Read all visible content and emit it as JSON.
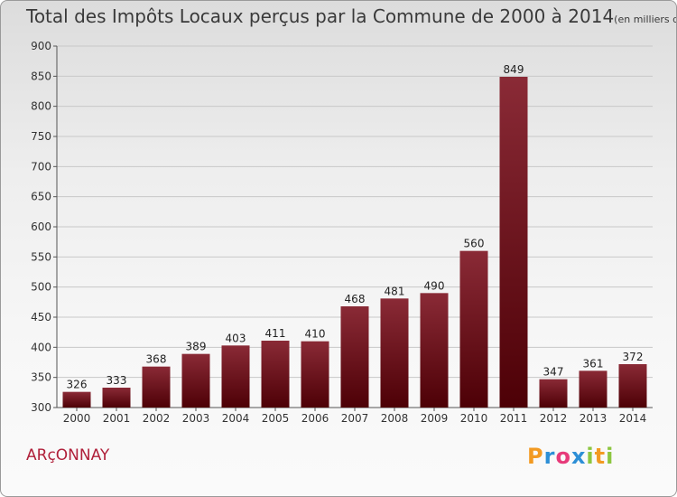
{
  "header": {
    "title": "Total des Impôts Locaux perçus par la Commune de 2000 à 2014",
    "unit": "(en milliers d'€)"
  },
  "commune": "ARçONNAY",
  "logo": {
    "text": "Proxiti",
    "letters": [
      {
        "ch": "P",
        "color": "#f29a22"
      },
      {
        "ch": "r",
        "color": "#2d8fd6"
      },
      {
        "ch": "o",
        "color": "#e73a7a"
      },
      {
        "ch": "x",
        "color": "#2d8fd6"
      },
      {
        "ch": "i",
        "color": "#8cc63f"
      },
      {
        "ch": "t",
        "color": "#f29a22"
      },
      {
        "ch": "i",
        "color": "#8cc63f"
      }
    ]
  },
  "chart_data": {
    "type": "bar",
    "title": "Total des Impôts Locaux perçus par la Commune de 2000 à 2014",
    "categories": [
      "2000",
      "2001",
      "2002",
      "2003",
      "2004",
      "2005",
      "2006",
      "2007",
      "2008",
      "2009",
      "2010",
      "2011",
      "2012",
      "2013",
      "2014"
    ],
    "values": [
      326,
      333,
      368,
      389,
      403,
      411,
      410,
      468,
      481,
      490,
      560,
      849,
      347,
      361,
      372
    ],
    "ylim": [
      300,
      900
    ],
    "yticks": [
      300,
      350,
      400,
      450,
      500,
      550,
      600,
      650,
      700,
      750,
      800,
      850,
      900
    ],
    "grid": true,
    "bar_color": "#6b0f1a",
    "data_labels": true
  }
}
